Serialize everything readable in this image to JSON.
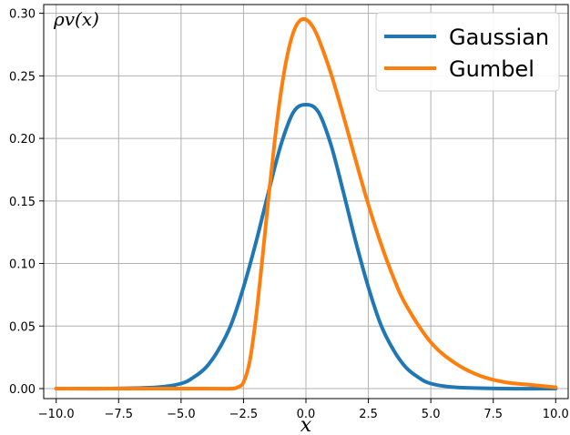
{
  "chart_data": {
    "type": "line",
    "title": "",
    "xlabel": "x",
    "ylabel": "ρv(x)",
    "xlim": [
      -10.5,
      10.5
    ],
    "ylim": [
      -0.008,
      0.307
    ],
    "x_ticks": [
      -10.0,
      -7.5,
      -5.0,
      -2.5,
      0.0,
      2.5,
      5.0,
      7.5,
      10.0
    ],
    "x_tick_labels": [
      "−10.0",
      "−7.5",
      "−5.0",
      "−2.5",
      "0.0",
      "2.5",
      "5.0",
      "7.5",
      "10.0"
    ],
    "y_ticks": [
      0.0,
      0.05,
      0.1,
      0.15,
      0.2,
      0.25,
      0.3
    ],
    "y_tick_labels": [
      "0.00",
      "0.05",
      "0.10",
      "0.15",
      "0.20",
      "0.25",
      "0.30"
    ],
    "grid": true,
    "legend": {
      "position": "top-right"
    },
    "series": [
      {
        "name": "Gaussian",
        "color": "#1f77b4",
        "x": [
          -10,
          -8,
          -6,
          -5,
          -4.5,
          -4,
          -3.5,
          -3,
          -2.5,
          -2,
          -1.5,
          -1,
          -0.5,
          0,
          0.5,
          1,
          1.5,
          2,
          2.5,
          3,
          3.5,
          4,
          4.5,
          5,
          6,
          8,
          10
        ],
        "y": [
          0.0,
          0.0,
          0.001,
          0.004,
          0.009,
          0.017,
          0.031,
          0.051,
          0.081,
          0.117,
          0.157,
          0.195,
          0.221,
          0.227,
          0.221,
          0.195,
          0.157,
          0.117,
          0.081,
          0.051,
          0.031,
          0.017,
          0.009,
          0.004,
          0.001,
          0.0,
          0.0
        ]
      },
      {
        "name": "Gumbel",
        "color": "#ff7f0e",
        "x": [
          -10,
          -4,
          -3,
          -2.75,
          -2.5,
          -2.25,
          -2,
          -1.75,
          -1.5,
          -1.25,
          -1,
          -0.75,
          -0.5,
          -0.25,
          0,
          0.25,
          0.5,
          1,
          1.5,
          2,
          2.5,
          3,
          3.5,
          4,
          5,
          6,
          7,
          8,
          9,
          10
        ],
        "y": [
          0.0,
          0.0,
          0.0,
          0.001,
          0.005,
          0.022,
          0.057,
          0.103,
          0.152,
          0.198,
          0.237,
          0.266,
          0.285,
          0.294,
          0.295,
          0.29,
          0.28,
          0.252,
          0.218,
          0.182,
          0.147,
          0.116,
          0.089,
          0.067,
          0.037,
          0.02,
          0.01,
          0.005,
          0.003,
          0.001
        ]
      }
    ]
  }
}
